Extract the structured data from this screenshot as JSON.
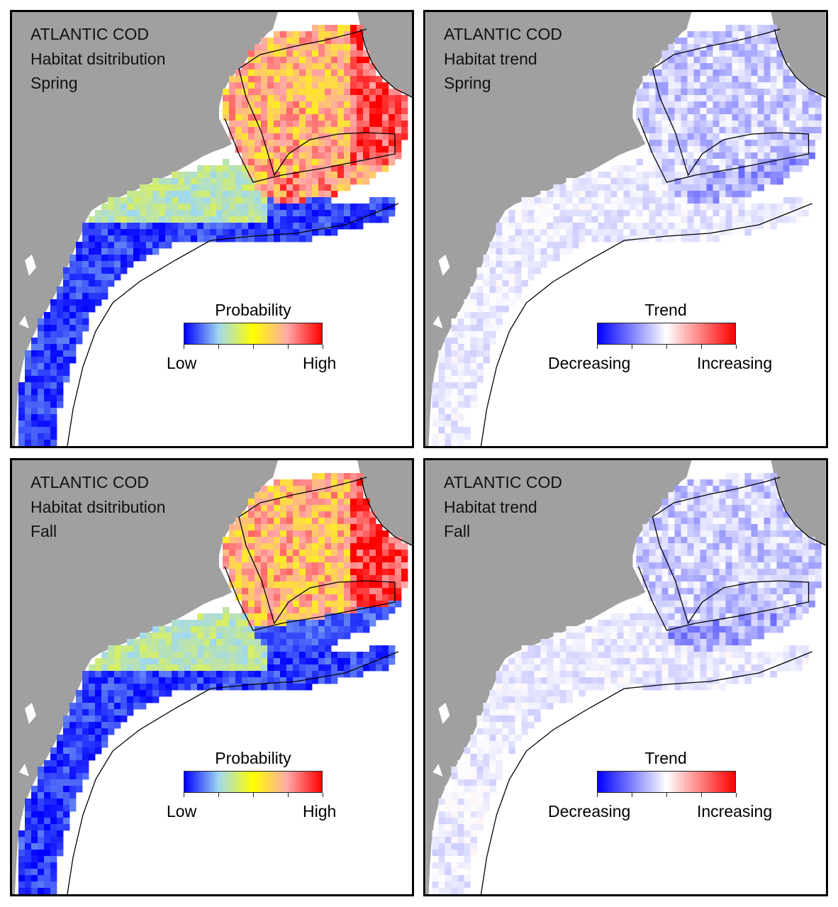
{
  "panels": [
    {
      "id": "spring-distribution",
      "title": [
        "ATLANTIC COD",
        "Habitat dsitribution",
        "Spring"
      ],
      "kind": "probability",
      "legend": {
        "title": "Probability",
        "low": "Low",
        "high": "High"
      }
    },
    {
      "id": "spring-trend",
      "title": [
        "ATLANTIC COD",
        "Habitat trend",
        "Spring"
      ],
      "kind": "trend",
      "legend": {
        "title": "Trend",
        "low": "Decreasing",
        "high": "Increasing"
      }
    },
    {
      "id": "fall-distribution",
      "title": [
        "ATLANTIC COD",
        "Habitat dsitribution",
        "Fall"
      ],
      "kind": "probability",
      "legend": {
        "title": "Probability",
        "low": "Low",
        "high": "High"
      }
    },
    {
      "id": "fall-trend",
      "title": [
        "ATLANTIC COD",
        "Habitat trend",
        "Fall"
      ],
      "kind": "trend",
      "legend": {
        "title": "Trend",
        "low": "Decreasing",
        "high": "Increasing"
      }
    }
  ],
  "colors": {
    "land": "#a0a0a0",
    "water": "#ffffff",
    "coastline": "#000000",
    "probability_scale": [
      "#0000ff",
      "#a0d8f0",
      "#ffff00",
      "#ffa8a8",
      "#ff0000"
    ],
    "trend_scale": [
      "#0000ff",
      "#ffffff",
      "#ff0000"
    ]
  }
}
